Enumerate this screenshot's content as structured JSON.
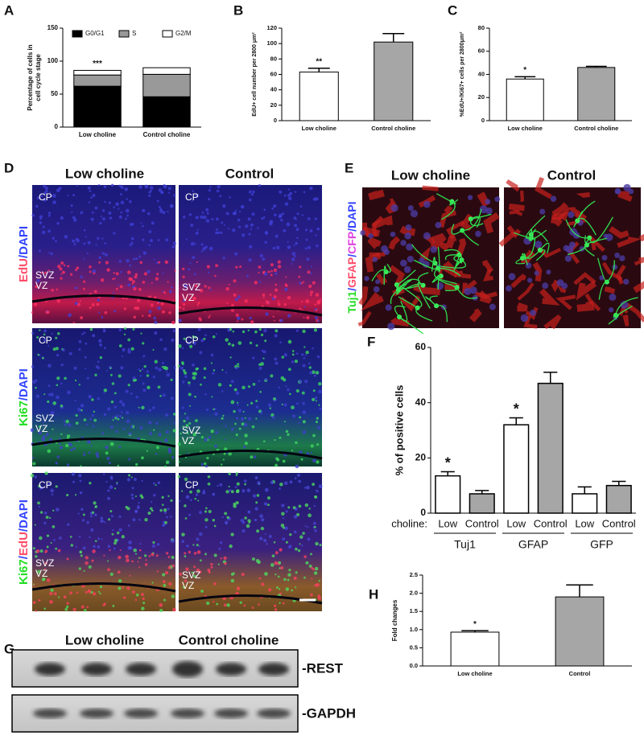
{
  "panel_labels": [
    "A",
    "B",
    "C",
    "D",
    "E",
    "F",
    "G",
    "H"
  ],
  "chart_data": [
    {
      "type": "bar",
      "stacked": true,
      "ylabel": [
        "Percentage of cells in",
        "cell cycle stage"
      ],
      "categories": [
        "Low choline",
        "Control choline"
      ],
      "series": [
        {
          "name": "G0/G1",
          "color": "#000000",
          "values": [
            62,
            46
          ]
        },
        {
          "name": "S",
          "color": "#999999",
          "values": [
            17,
            34
          ]
        },
        {
          "name": "G2/M",
          "color": "#ffffff",
          "values": [
            7,
            10
          ]
        }
      ],
      "ylim": [
        0,
        150
      ],
      "yticks": [
        0,
        50,
        100,
        150
      ],
      "annotations": [
        {
          "text": "***",
          "index": 0
        }
      ]
    },
    {
      "type": "bar",
      "ylabel": "EdU+ cell number per 2800 μm²",
      "categories": [
        "Low choline",
        "Control choline"
      ],
      "values": [
        63,
        102
      ],
      "errors": [
        5,
        11
      ],
      "colors": [
        "#ffffff",
        "#a6a6a6"
      ],
      "ylim": [
        0,
        120
      ],
      "yticks": [
        0,
        20,
        40,
        60,
        80,
        100,
        120
      ],
      "annotations": [
        {
          "text": "**",
          "index": 0
        }
      ]
    },
    {
      "type": "bar",
      "ylabel": "%EdU+/Ki67+ cells per 2800μm²",
      "categories": [
        "Low choline",
        "Control choline"
      ],
      "values": [
        36,
        46
      ],
      "errors": [
        2,
        1
      ],
      "colors": [
        "#ffffff",
        "#a6a6a6"
      ],
      "ylim": [
        0,
        80
      ],
      "yticks": [
        0,
        20,
        40,
        60,
        80
      ],
      "annotations": [
        {
          "text": "*",
          "index": 0
        }
      ]
    },
    {
      "type": "bar",
      "ylabel": "% of positive cells",
      "category_prefix": "choline:",
      "categories": [
        "Low",
        "Control",
        "Low",
        "Control",
        "Low",
        "Control"
      ],
      "groups": [
        "Tuj1",
        "GFAP",
        "GFP"
      ],
      "values": [
        13.5,
        7,
        32,
        47,
        7,
        10
      ],
      "errors": [
        1.5,
        1.2,
        2.5,
        4,
        2.5,
        1.5
      ],
      "colors": [
        "#ffffff",
        "#a6a6a6",
        "#ffffff",
        "#a6a6a6",
        "#ffffff",
        "#a6a6a6"
      ],
      "ylim": [
        0,
        60
      ],
      "yticks": [
        0,
        20,
        40,
        60
      ],
      "annotations": [
        {
          "text": "*",
          "index": 0
        },
        {
          "text": "*",
          "index": 2
        }
      ]
    },
    {
      "type": "bar",
      "ylabel": "Fold changes",
      "categories": [
        "Low choline",
        "Control"
      ],
      "values": [
        0.93,
        1.9
      ],
      "errors": [
        0.04,
        0.33
      ],
      "colors": [
        "#ffffff",
        "#a6a6a6"
      ],
      "ylim": [
        0,
        2.5
      ],
      "yticks": [
        {
          "value": 0,
          "label": "0.0"
        },
        0.5,
        {
          "value": 1,
          "label": "1.0"
        },
        1.5,
        {
          "value": 2,
          "label": "2.0"
        },
        2.5
      ],
      "annotations": [
        {
          "text": "*",
          "index": 0
        }
      ]
    }
  ],
  "micrographs": {
    "D": {
      "columns": [
        "Low choline",
        "Control"
      ],
      "regions": [
        "CP",
        "SVZ",
        "VZ"
      ],
      "row_labels": [
        [
          {
            "text": "EdU",
            "color": "#ff4d6a"
          },
          {
            "text": "/DAPI",
            "color": "#3344ff"
          }
        ],
        [
          {
            "text": "Ki67",
            "color": "#22dd22"
          },
          {
            "text": "/DAPI",
            "color": "#3344ff"
          }
        ],
        [
          {
            "text": "Ki67",
            "color": "#22dd22"
          },
          {
            "text": "/",
            "color": "#3344ff"
          },
          {
            "text": "EdU",
            "color": "#ff4d6a"
          },
          {
            "text": "/DAPI",
            "color": "#3344ff"
          }
        ]
      ]
    },
    "E": {
      "columns": [
        "Low choline",
        "Control"
      ],
      "row_label": [
        {
          "text": "Tuj1",
          "color": "#22dd22"
        },
        {
          "text": "/",
          "color": "#3344ff"
        },
        {
          "text": "GFAP",
          "color": "#ff4d6a"
        },
        {
          "text": "/",
          "color": "#3344ff"
        },
        {
          "text": "CFP",
          "color": "#e040e0"
        },
        {
          "text": "/DAPI",
          "color": "#3344ff"
        }
      ]
    }
  },
  "blot": {
    "lane_groups": [
      "Low choline",
      "Control choline"
    ],
    "bands": [
      "-REST",
      "-GAPDH"
    ]
  }
}
